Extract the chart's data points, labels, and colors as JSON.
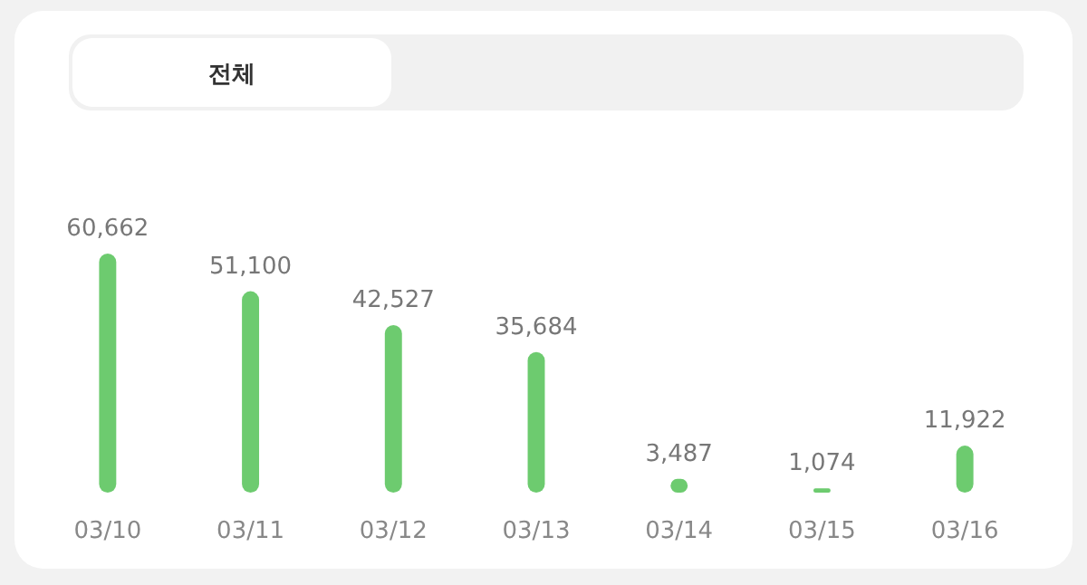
{
  "chart_data": {
    "type": "bar",
    "categories": [
      "03/10",
      "03/11",
      "03/12",
      "03/13",
      "03/14",
      "03/15",
      "03/16"
    ],
    "values": [
      60662,
      51100,
      42527,
      35684,
      3487,
      1074,
      11922
    ],
    "color": "#6dcb6f",
    "value_labels": [
      "60,662",
      "51,100",
      "42,527",
      "35,684",
      "3,487",
      "1,074",
      "11,922"
    ],
    "annotations": [
      "전체"
    ]
  }
}
